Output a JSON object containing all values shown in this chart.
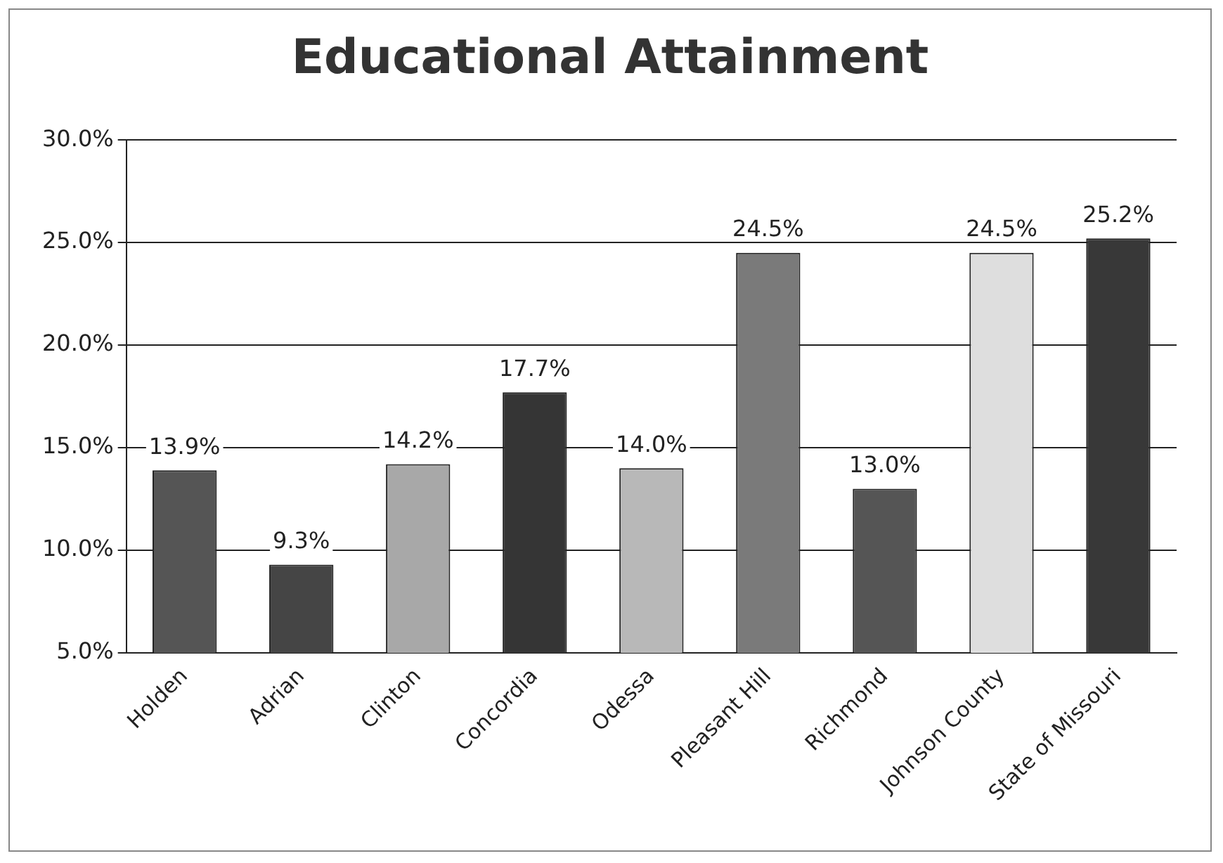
{
  "chart_data": {
    "type": "bar",
    "title": "Educational Attainment",
    "categories": [
      "Holden",
      "Adrian",
      "Clinton",
      "Concordia",
      "Odessa",
      "Pleasant Hill",
      "Richmond",
      "Johnson County",
      "State of Missouri"
    ],
    "values": [
      13.9,
      9.3,
      14.2,
      17.7,
      14.0,
      24.5,
      13.0,
      24.5,
      25.2
    ],
    "colors": [
      "#555555",
      "#454545",
      "#a8a8a8",
      "#353535",
      "#b8b8b8",
      "#7a7a7a",
      "#555555",
      "#dedede",
      "#383838"
    ],
    "value_labels": [
      "13.9%",
      "9.3%",
      "14.2%",
      "17.7%",
      "14.0%",
      "24.5%",
      "13.0%",
      "24.5%",
      "25.2%"
    ],
    "ylim": [
      5,
      30
    ],
    "yticks": [
      {
        "value": 5,
        "label": "5.0%"
      },
      {
        "value": 10,
        "label": "10.0%"
      },
      {
        "value": 15,
        "label": "15.0%"
      },
      {
        "value": 20,
        "label": "20.0%"
      },
      {
        "value": 25,
        "label": "25.0%"
      },
      {
        "value": 30,
        "label": "30.0%"
      }
    ],
    "grid": "y",
    "legend": false
  }
}
